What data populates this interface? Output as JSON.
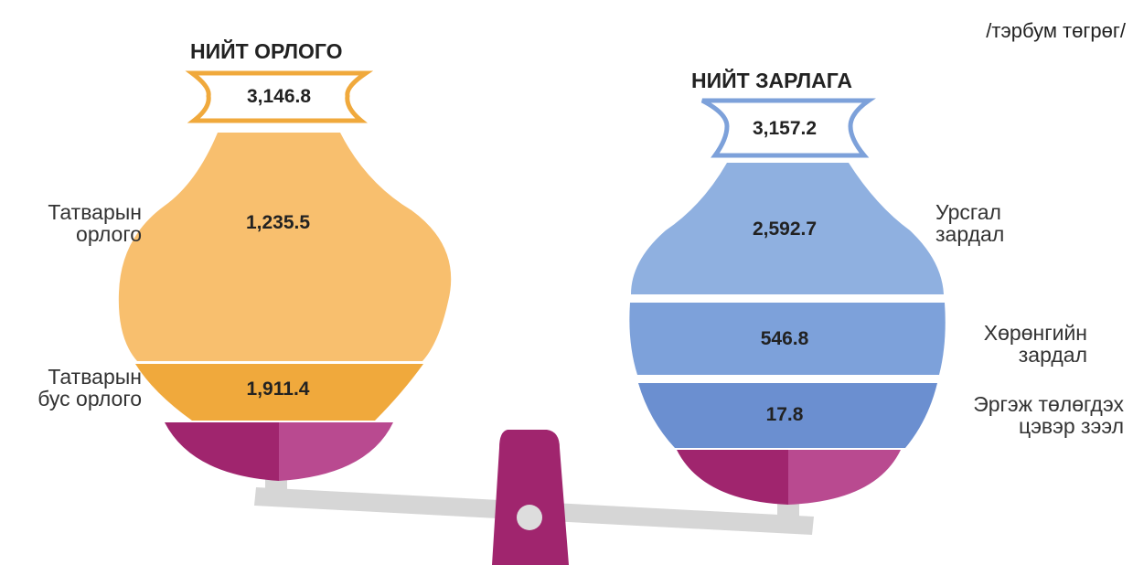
{
  "unit": "/тэрбум төгрөг/",
  "income": {
    "title": "НИЙТ ОРЛОГО",
    "total": "3,146.8",
    "items": [
      {
        "label": "Татварын\nорлого",
        "value": "1,235.5"
      },
      {
        "label": "Татварын\nбус орлого",
        "value": "1,911.4"
      }
    ]
  },
  "expense": {
    "title": "НИЙТ ЗАРЛАГА",
    "total": "3,157.2",
    "items": [
      {
        "label": "Урсгал\nзардал",
        "value": "2,592.7"
      },
      {
        "label": "Хөрөнгийн\nзардал",
        "value": "546.8"
      },
      {
        "label": "Эргэж төлөгдэх\nцэвэр зээл",
        "value": "17.8"
      }
    ]
  }
}
